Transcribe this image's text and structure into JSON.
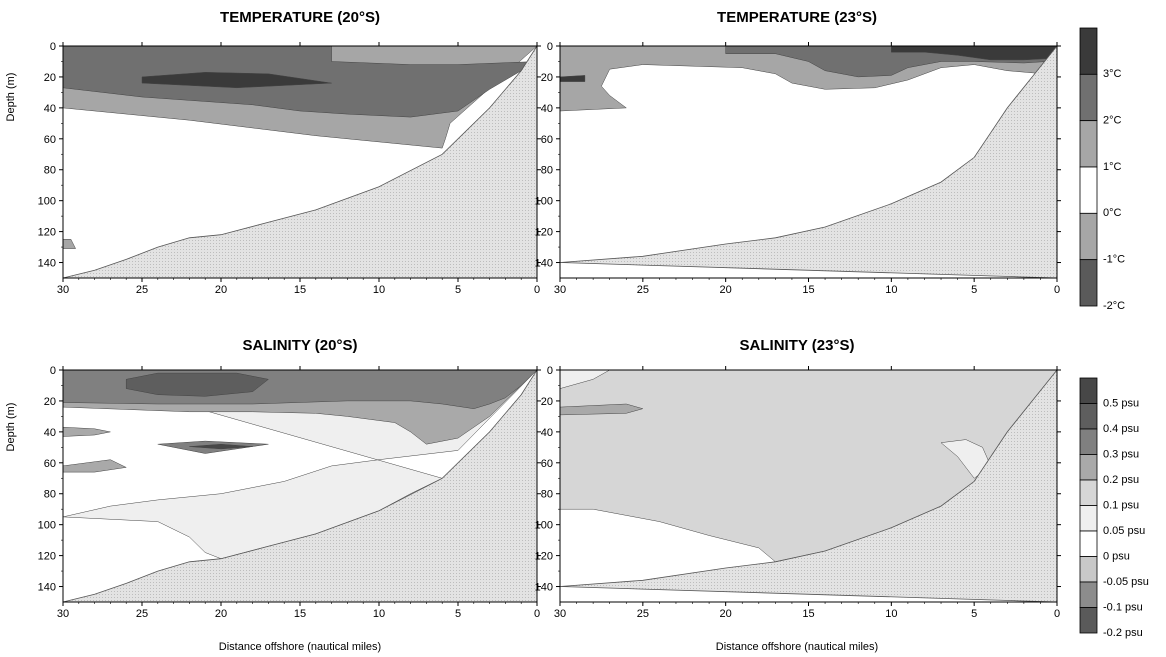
{
  "colors": {
    "c1": "#3a3a3a",
    "c2": "#707070",
    "c3": "#a6a6a6",
    "c4": "#ffffff",
    "c5": "#a6a6a6",
    "c6": "#5a5a5a",
    "s1": "#474747",
    "s2": "#5e5e5e",
    "s3": "#808080",
    "s4": "#a9a9a9",
    "s5": "#d6d6d6",
    "s6": "#efefef",
    "s7": "#ffffff",
    "s8": "#c8c8c8",
    "s9": "#8c8c8c",
    "s10": "#5a5a5a",
    "seafloor": "#e3e3e3"
  },
  "chart_data": [
    {
      "type": "contour",
      "title": "TEMPERATURE (20°S)",
      "xlabel": "",
      "ylabel": "Depth (m)",
      "xlim": [
        30,
        0
      ],
      "ylim": [
        0,
        150
      ],
      "xticks": [
        30,
        25,
        20,
        15,
        10,
        5,
        0
      ],
      "yticks": [
        0,
        20,
        40,
        60,
        80,
        100,
        120,
        140
      ],
      "regions": [
        {
          "level": "2°C",
          "color_key": "c3",
          "points": [
            [
              30,
              0
            ],
            [
              0,
              0
            ],
            [
              5.5,
              50
            ],
            [
              5.8,
              60
            ],
            [
              6,
              66
            ],
            [
              14,
              58
            ],
            [
              22,
              48
            ],
            [
              30,
              40
            ]
          ]
        },
        {
          "level": "3°C",
          "color_key": "c2",
          "points": [
            [
              30,
              0
            ],
            [
              13,
              0
            ],
            [
              13,
              10
            ],
            [
              8,
              12
            ],
            [
              5,
              12
            ],
            [
              0,
              10
            ],
            [
              3,
              28
            ],
            [
              5,
              42
            ],
            [
              8,
              46
            ],
            [
              12,
              44
            ],
            [
              15,
              42
            ],
            [
              18,
              38
            ],
            [
              25,
              33
            ],
            [
              30,
              27
            ]
          ]
        },
        {
          "level": "above 3°C",
          "color_key": "c1",
          "points": [
            [
              25,
              20
            ],
            [
              21,
              17
            ],
            [
              17,
              18
            ],
            [
              13,
              24
            ],
            [
              19,
              27
            ],
            [
              25,
              24
            ]
          ]
        },
        {
          "level": "2°C",
          "color_key": "c3",
          "points": [
            [
              30,
              125
            ],
            [
              29.5,
              125
            ],
            [
              29.2,
              131
            ],
            [
              30,
              131
            ]
          ]
        }
      ],
      "seafloor": [
        [
          30,
          150
        ],
        [
          28,
          145
        ],
        [
          26,
          138
        ],
        [
          24,
          130
        ],
        [
          22,
          124
        ],
        [
          20,
          122
        ],
        [
          17,
          114
        ],
        [
          14,
          106
        ],
        [
          10,
          91
        ],
        [
          6,
          70
        ],
        [
          3,
          40
        ],
        [
          1,
          16
        ],
        [
          0,
          0
        ]
      ]
    },
    {
      "type": "contour",
      "title": "TEMPERATURE (23°S)",
      "xlabel": "",
      "ylabel": "",
      "xlim": [
        30,
        0
      ],
      "ylim": [
        0,
        150
      ],
      "xticks": [
        30,
        25,
        20,
        15,
        10,
        5,
        0
      ],
      "yticks": [
        0,
        20,
        40,
        60,
        80,
        100,
        120,
        140
      ],
      "regions": [
        {
          "level": "2°C",
          "color_key": "c3",
          "points": [
            [
              30,
              0
            ],
            [
              0,
              0
            ],
            [
              0.8,
              18
            ],
            [
              3,
              16
            ],
            [
              5,
              12
            ],
            [
              7,
              14
            ],
            [
              9,
              22
            ],
            [
              11,
              27
            ],
            [
              14,
              28
            ],
            [
              16,
              24
            ],
            [
              17,
              18
            ],
            [
              19,
              14
            ],
            [
              25,
              12
            ],
            [
              27,
              15
            ],
            [
              27.5,
              26
            ],
            [
              27,
              32
            ],
            [
              26,
              40
            ],
            [
              30,
              42
            ]
          ]
        },
        {
          "level": "3°C",
          "color_key": "c2",
          "points": [
            [
              20,
              0
            ],
            [
              0,
              0
            ],
            [
              0.6,
              10
            ],
            [
              2,
              11
            ],
            [
              5,
              10
            ],
            [
              7,
              10
            ],
            [
              9,
              14
            ],
            [
              10,
              19
            ],
            [
              12,
              20
            ],
            [
              14,
              16
            ],
            [
              15,
              10
            ],
            [
              17,
              5
            ],
            [
              20,
              5
            ]
          ]
        },
        {
          "level": "above 3°C",
          "color_key": "c1",
          "points": [
            [
              10,
              0
            ],
            [
              0,
              0
            ],
            [
              0.3,
              8
            ],
            [
              2,
              9
            ],
            [
              4,
              9
            ],
            [
              6,
              6
            ],
            [
              8,
              4
            ],
            [
              10,
              4
            ]
          ]
        },
        {
          "level": "above 3°C",
          "color_key": "c1",
          "points": [
            [
              30,
              20
            ],
            [
              28.5,
              19
            ],
            [
              28.5,
              23
            ],
            [
              30,
              23
            ]
          ]
        }
      ],
      "seafloor": [
        [
          30,
          140
        ],
        [
          25,
          136
        ],
        [
          20,
          128
        ],
        [
          17,
          124
        ],
        [
          14,
          117
        ],
        [
          10,
          102
        ],
        [
          7,
          88
        ],
        [
          5,
          72
        ],
        [
          3,
          40
        ],
        [
          1.5,
          20
        ],
        [
          0,
          0
        ]
      ]
    },
    {
      "type": "contour",
      "title": "SALINITY (20°S)",
      "xlabel": "Distance offshore (nautical miles)",
      "ylabel": "Depth (m)",
      "xlim": [
        30,
        0
      ],
      "ylim": [
        0,
        150
      ],
      "xticks": [
        30,
        25,
        20,
        15,
        10,
        5,
        0
      ],
      "yticks": [
        0,
        20,
        40,
        60,
        80,
        100,
        120,
        140
      ],
      "regions": [
        {
          "level": "0.05 psu",
          "color_key": "s6",
          "points": [
            [
              30,
              0
            ],
            [
              0,
              0
            ],
            [
              5,
              52
            ],
            [
              10,
              58
            ],
            [
              13,
              62
            ],
            [
              16,
              72
            ],
            [
              20,
              80
            ],
            [
              24,
              84
            ],
            [
              27,
              88
            ],
            [
              30,
              95
            ],
            [
              24,
              98
            ],
            [
              22,
              108
            ],
            [
              21,
              118
            ],
            [
              20,
              122
            ],
            [
              17,
              114
            ],
            [
              14,
              106
            ],
            [
              10,
              91
            ],
            [
              8,
              80
            ],
            [
              6,
              70
            ]
          ]
        },
        {
          "level": "0.2 psu",
          "color_key": "s4",
          "points": [
            [
              30,
              0
            ],
            [
              0,
              0
            ],
            [
              3,
              30
            ],
            [
              5,
              44
            ],
            [
              7,
              48
            ],
            [
              8,
              40
            ],
            [
              9,
              34
            ],
            [
              12,
              30
            ],
            [
              14,
              28
            ],
            [
              18,
              27
            ],
            [
              22,
              27
            ],
            [
              30,
              24
            ]
          ]
        },
        {
          "level": "0.2 psu",
          "color_key": "s4",
          "points": [
            [
              30,
              37
            ],
            [
              28,
              38
            ],
            [
              27,
              40
            ],
            [
              28,
              42
            ],
            [
              30,
              43
            ]
          ]
        },
        {
          "level": "0.2 psu",
          "color_key": "s4",
          "points": [
            [
              30,
              62
            ],
            [
              27,
              58
            ],
            [
              26,
              63
            ],
            [
              28,
              66
            ],
            [
              30,
              66
            ]
          ]
        },
        {
          "level": "0.3 psu",
          "color_key": "s3",
          "points": [
            [
              30,
              0
            ],
            [
              0,
              0
            ],
            [
              1,
              10
            ],
            [
              2,
              18
            ],
            [
              3,
              22
            ],
            [
              4,
              25
            ],
            [
              6,
              22
            ],
            [
              8,
              20
            ],
            [
              12,
              20
            ],
            [
              18,
              22
            ],
            [
              24,
              22
            ],
            [
              30,
              21
            ]
          ]
        },
        {
          "level": "0.4 psu",
          "color_key": "s2",
          "points": [
            [
              26,
              6
            ],
            [
              24,
              2
            ],
            [
              19,
              2
            ],
            [
              17,
              6
            ],
            [
              18,
              14
            ],
            [
              21,
              17
            ],
            [
              24,
              16
            ],
            [
              26,
              12
            ]
          ]
        },
        {
          "level": "0.3 psu",
          "color_key": "s3",
          "points": [
            [
              24,
              48
            ],
            [
              21,
              46
            ],
            [
              17,
              48
            ],
            [
              21,
              54
            ]
          ]
        },
        {
          "level": "0.5 psu",
          "color_key": "s1",
          "points": [
            [
              22,
              49.5
            ],
            [
              20,
              48
            ],
            [
              18,
              49.5
            ],
            [
              20,
              51
            ]
          ]
        }
      ],
      "seafloor": [
        [
          30,
          150
        ],
        [
          28,
          145
        ],
        [
          26,
          138
        ],
        [
          24,
          130
        ],
        [
          22,
          124
        ],
        [
          20,
          122
        ],
        [
          17,
          114
        ],
        [
          14,
          106
        ],
        [
          10,
          91
        ],
        [
          6,
          70
        ],
        [
          3,
          40
        ],
        [
          1,
          16
        ],
        [
          0,
          0
        ]
      ]
    },
    {
      "type": "contour",
      "title": "SALINITY (23°S)",
      "xlabel": "Distance offshore (nautical miles)",
      "ylabel": "",
      "xlim": [
        30,
        0
      ],
      "ylim": [
        0,
        150
      ],
      "xticks": [
        30,
        25,
        20,
        15,
        10,
        5,
        0
      ],
      "yticks": [
        0,
        20,
        40,
        60,
        80,
        100,
        120,
        140
      ],
      "regions": [
        {
          "level": "0.1 psu",
          "color_key": "s5",
          "points": [
            [
              30,
              0
            ],
            [
              0,
              0
            ],
            [
              1.5,
              20
            ],
            [
              3,
              40
            ],
            [
              5,
              72
            ],
            [
              7,
              88
            ],
            [
              10,
              102
            ],
            [
              14,
              117
            ],
            [
              17,
              124
            ],
            [
              18,
              115
            ],
            [
              21,
              107
            ],
            [
              24,
              98
            ],
            [
              28,
              90
            ],
            [
              30,
              90
            ]
          ]
        },
        {
          "level": "0.05 psu",
          "color_key": "s6",
          "points": [
            [
              30,
              0
            ],
            [
              27,
              0
            ],
            [
              28,
              6
            ],
            [
              30,
              12
            ]
          ]
        },
        {
          "level": "0.2 psu",
          "color_key": "s4",
          "points": [
            [
              30,
              24
            ],
            [
              26,
              22
            ],
            [
              25,
              25
            ],
            [
              26,
              28
            ],
            [
              30,
              29
            ]
          ]
        },
        {
          "level": "0.05 psu",
          "color_key": "s6",
          "points": [
            [
              4,
              62
            ],
            [
              4.5,
              50
            ],
            [
              5.5,
              45
            ],
            [
              7,
              47
            ],
            [
              6,
              56
            ],
            [
              5,
              70
            ]
          ]
        }
      ],
      "seafloor": [
        [
          30,
          140
        ],
        [
          25,
          136
        ],
        [
          20,
          128
        ],
        [
          17,
          124
        ],
        [
          14,
          117
        ],
        [
          10,
          102
        ],
        [
          7,
          88
        ],
        [
          5,
          72
        ],
        [
          3,
          40
        ],
        [
          1.5,
          20
        ],
        [
          0,
          0
        ]
      ]
    }
  ],
  "legends": {
    "temperature": {
      "labels": [
        "3°C",
        "2°C",
        "1°C",
        "0°C",
        "-1°C",
        "-2°C"
      ],
      "color_keys": [
        "c1",
        "c2",
        "c3",
        "c4",
        "c5",
        "c6"
      ]
    },
    "salinity": {
      "labels": [
        "0.5 psu",
        "0.4 psu",
        "0.3 psu",
        "0.2 psu",
        "0.1 psu",
        "0.05 psu",
        "0 psu",
        "-0.05 psu",
        "-0.1 psu",
        "-0.2 psu"
      ],
      "color_keys": [
        "s1",
        "s2",
        "s3",
        "s4",
        "s5",
        "s6",
        "s7",
        "s8",
        "s9",
        "s10"
      ]
    }
  }
}
